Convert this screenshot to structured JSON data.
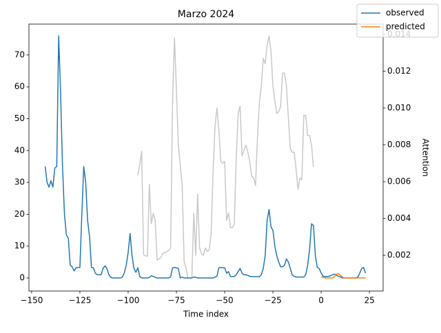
{
  "chart_data": {
    "type": "line",
    "title": "Marzo 2024",
    "xlabel": "Time index",
    "y2label": "Attention",
    "legend": "upper right",
    "xlim": [
      -151.4,
      32.1
    ],
    "ylim": [
      -4.1,
      79.7
    ],
    "y2lim": [
      6e-05,
      0.01456
    ],
    "xticks": [
      {
        "value": -150,
        "label": "−150"
      },
      {
        "value": -125,
        "label": "−125"
      },
      {
        "value": -100,
        "label": "−100"
      },
      {
        "value": -75,
        "label": "−75"
      },
      {
        "value": -50,
        "label": "−50"
      },
      {
        "value": -25,
        "label": "−25"
      },
      0,
      25
    ],
    "yticks": [
      0,
      10,
      20,
      30,
      40,
      50,
      60,
      70
    ],
    "y2ticks": [
      0.002,
      0.004,
      0.006,
      0.008,
      {
        "value": 0.01,
        "label": "0.010"
      },
      0.012,
      0.014
    ],
    "series": [
      {
        "name": "attention",
        "axis": "y2",
        "color": "#c8c8c8",
        "x": [
          -95,
          -94,
          -93,
          -92,
          -91,
          -90,
          -89,
          -88,
          -87,
          -86,
          -85,
          -84,
          -83,
          -82,
          -81,
          -80,
          -79,
          -78,
          -77,
          -76,
          -75,
          -74,
          -73,
          -72,
          -71,
          -70,
          -69,
          -68,
          -67,
          -66,
          -65,
          -64,
          -63,
          -62,
          -61,
          -60,
          -59,
          -58,
          -57,
          -56,
          -55,
          -54,
          -53,
          -52,
          -51,
          -50,
          -49,
          -48,
          -47,
          -46,
          -45,
          -44,
          -43,
          -42,
          -41,
          -40,
          -39,
          -38,
          -37,
          -36,
          -35,
          -34,
          -33,
          -32,
          -31,
          -30,
          -29,
          -28,
          -27,
          -26,
          -25,
          -24,
          -23,
          -22,
          -21,
          -20,
          -19,
          -18,
          -17,
          -16,
          -15,
          -14,
          -13,
          -12,
          -11,
          -10,
          -9,
          -8,
          -7,
          -6,
          -5,
          -4
        ],
        "values": [
          0.00634,
          0.0069,
          0.00765,
          0.00204,
          0.00196,
          0.00196,
          0.00585,
          0.00372,
          0.00428,
          0.0039,
          0.00174,
          0.00181,
          0.00189,
          0.00211,
          0.00215,
          0.00219,
          0.00226,
          0.00241,
          0.01026,
          0.01381,
          0.01101,
          0.00802,
          0.0069,
          0.00578,
          0.00166,
          0.00129,
          0.00077,
          0.00077,
          0.00077,
          0.00428,
          0.002,
          0.00533,
          0.0024,
          0.0021,
          0.002,
          0.0024,
          0.0022,
          0.0023,
          0.0032,
          0.0065,
          0.009,
          0.01,
          0.0088,
          0.0071,
          0.007,
          0.0071,
          0.0039,
          0.0043,
          0.0035,
          0.0035,
          0.0037,
          0.0073,
          0.0097,
          0.0101,
          0.0074,
          0.0077,
          0.008,
          0.0076,
          0.0071,
          0.0063,
          0.0062,
          0.0058,
          0.0084,
          0.0103,
          0.0112,
          0.0127,
          0.0124,
          0.0134,
          0.0139,
          0.0131,
          0.0112,
          0.0104,
          0.0097,
          0.0098,
          0.0101,
          0.0119,
          0.0119,
          0.0112,
          0.0095,
          0.0078,
          0.0076,
          0.0076,
          0.0067,
          0.0056,
          0.0062,
          0.0061,
          0.0096,
          0.0096,
          0.0085,
          0.0085,
          0.008,
          0.0068
        ]
      },
      {
        "name": "observed",
        "color": "#1f77b4",
        "x": [
          -143,
          -142,
          -141,
          -140,
          -139,
          -138,
          -137,
          -136,
          -135,
          -134,
          -133,
          -132,
          -131,
          -130,
          -129,
          -128,
          -127,
          -126,
          -125,
          -124,
          -123,
          -122,
          -121,
          -120,
          -119,
          -118,
          -117,
          -116,
          -115,
          -114,
          -113,
          -112,
          -111,
          -110,
          -109,
          -108,
          -107,
          -106,
          -105,
          -104,
          -103,
          -102,
          -101,
          -100,
          -99,
          -98,
          -97,
          -96,
          -95,
          -94,
          -93,
          -92,
          -91,
          -90,
          -89,
          -88,
          -87,
          -86,
          -85,
          -84,
          -83,
          -82,
          -81,
          -80,
          -79,
          -78,
          -77,
          -76,
          -75,
          -74,
          -73,
          -72,
          -71,
          -70,
          -69,
          -68,
          -67,
          -66,
          -65,
          -64,
          -63,
          -62,
          -61,
          -60,
          -59,
          -58,
          -57,
          -56,
          -55,
          -54,
          -53,
          -52,
          -51,
          -50,
          -49,
          -48,
          -47,
          -46,
          -45,
          -44,
          -43,
          -42,
          -41,
          -40,
          -39,
          -38,
          -37,
          -36,
          -35,
          -34,
          -33,
          -32,
          -31,
          -30,
          -29,
          -28,
          -27,
          -26,
          -25,
          -24,
          -23,
          -22,
          -21,
          -20,
          -19,
          -18,
          -17,
          -16,
          -15,
          -14,
          -13,
          -12,
          -11,
          -10,
          -9,
          -8,
          -7,
          -6,
          -5,
          -4,
          -3,
          -2,
          -1,
          0,
          1,
          2,
          3,
          4,
          5,
          6,
          7,
          8,
          9,
          10,
          11,
          12,
          13,
          14,
          15,
          16,
          17,
          18,
          19,
          20,
          21,
          22,
          23
        ],
        "values": [
          35,
          30,
          28.5,
          30.5,
          28.5,
          34.5,
          35,
          76,
          58,
          35,
          20,
          13.5,
          12.5,
          4,
          3.5,
          2.2,
          3.2,
          3.3,
          3.3,
          20,
          35,
          30,
          18,
          13,
          3.3,
          3.2,
          1.5,
          1,
          1,
          1,
          3,
          3.8,
          3,
          1,
          0.2,
          0,
          0,
          0,
          0,
          0,
          0.3,
          1.5,
          4,
          8,
          14,
          7,
          3,
          1.8,
          3.2,
          0.5,
          0,
          0,
          0,
          0,
          0.2,
          0.7,
          0.5,
          0.2,
          0,
          0,
          0,
          0,
          0,
          0,
          0,
          0.3,
          3.2,
          3.3,
          3.2,
          3,
          0,
          0.3,
          0,
          0,
          0,
          0,
          0,
          0.3,
          0.2,
          0,
          0,
          0,
          0,
          0,
          0,
          0,
          0,
          0,
          0.3,
          0.5,
          3.2,
          3.3,
          3.2,
          3.2,
          1.5,
          2,
          0.5,
          0.4,
          0.5,
          1,
          2,
          3,
          1.5,
          1,
          1,
          0.8,
          0.5,
          0.4,
          0.4,
          0.4,
          0.4,
          0.4,
          1,
          3,
          7,
          18,
          21.5,
          16,
          15,
          10,
          7,
          5,
          3.5,
          3.5,
          4,
          6,
          5,
          3,
          1,
          0.5,
          0.3,
          0.3,
          0.3,
          0.3,
          0.3,
          1,
          4,
          9,
          17,
          16.5,
          7,
          3.3,
          3,
          1.5,
          0.6,
          0.4,
          0.5,
          0.5,
          0.8,
          1,
          1.2,
          0.8,
          0.5,
          0.3,
          0,
          0,
          0,
          0,
          0,
          0,
          0,
          0,
          0.3,
          1.5,
          3,
          3.3,
          1.5
        ]
      },
      {
        "name": "predicted",
        "color": "#ff7f0e",
        "x": [
          0,
          1,
          2,
          3,
          4,
          5,
          6,
          7,
          8,
          9,
          10,
          11,
          12,
          13,
          14,
          15,
          16,
          17,
          18,
          19,
          20,
          21,
          22,
          23
        ],
        "values": [
          0.5,
          0.2,
          0,
          0,
          0,
          0,
          0,
          0.5,
          1.2,
          1.3,
          0.8,
          0.3,
          0,
          0,
          0,
          0,
          0,
          0,
          0,
          0,
          0,
          0,
          0,
          0
        ]
      }
    ]
  }
}
